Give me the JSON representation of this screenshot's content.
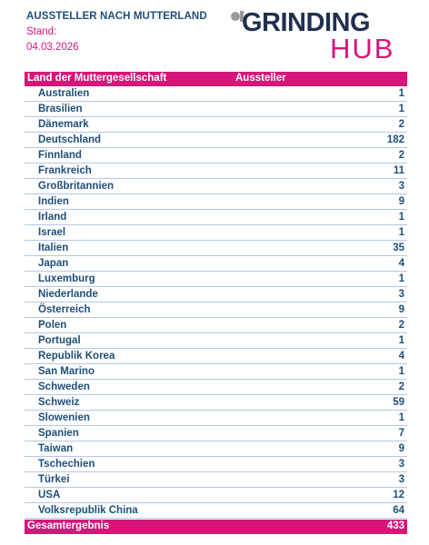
{
  "heading": "AUSSTELLER NACH MUTTERLAND",
  "stand_label": "Stand:",
  "stand_date": "04.03.2026",
  "logo": {
    "line1": "GRINDING",
    "line2": "HUB",
    "colors": {
      "dark": "#1f2f4f",
      "accent": "#d6157a",
      "gray": "#9a9a9a"
    }
  },
  "table": {
    "headers": [
      "Land der Muttergesellschaft",
      "Aussteller"
    ],
    "rows": [
      {
        "country": "Australien",
        "count": "1"
      },
      {
        "country": "Brasilien",
        "count": "1"
      },
      {
        "country": "Dänemark",
        "count": "2"
      },
      {
        "country": "Deutschland",
        "count": "182"
      },
      {
        "country": "Finnland",
        "count": "2"
      },
      {
        "country": "Frankreich",
        "count": "11"
      },
      {
        "country": "Großbritannien",
        "count": "3"
      },
      {
        "country": "Indien",
        "count": "9"
      },
      {
        "country": "Irland",
        "count": "1"
      },
      {
        "country": "Israel",
        "count": "1"
      },
      {
        "country": "Italien",
        "count": "35"
      },
      {
        "country": "Japan",
        "count": "4"
      },
      {
        "country": "Luxemburg",
        "count": "1"
      },
      {
        "country": "Niederlande",
        "count": "3"
      },
      {
        "country": "Österreich",
        "count": "9"
      },
      {
        "country": "Polen",
        "count": "2"
      },
      {
        "country": "Portugal",
        "count": "1"
      },
      {
        "country": "Republik Korea",
        "count": "4"
      },
      {
        "country": "San Marino",
        "count": "1"
      },
      {
        "country": "Schweden",
        "count": "2"
      },
      {
        "country": "Schweiz",
        "count": "59"
      },
      {
        "country": "Slowenien",
        "count": "1"
      },
      {
        "country": "Spanien",
        "count": "7"
      },
      {
        "country": "Taiwan",
        "count": "9"
      },
      {
        "country": "Tschechien",
        "count": "3"
      },
      {
        "country": "Türkei",
        "count": "3"
      },
      {
        "country": "USA",
        "count": "12"
      },
      {
        "country": "Volksrepublik China",
        "count": "64"
      }
    ],
    "total_label": "Gesamtergebnis",
    "total_value": "433"
  }
}
